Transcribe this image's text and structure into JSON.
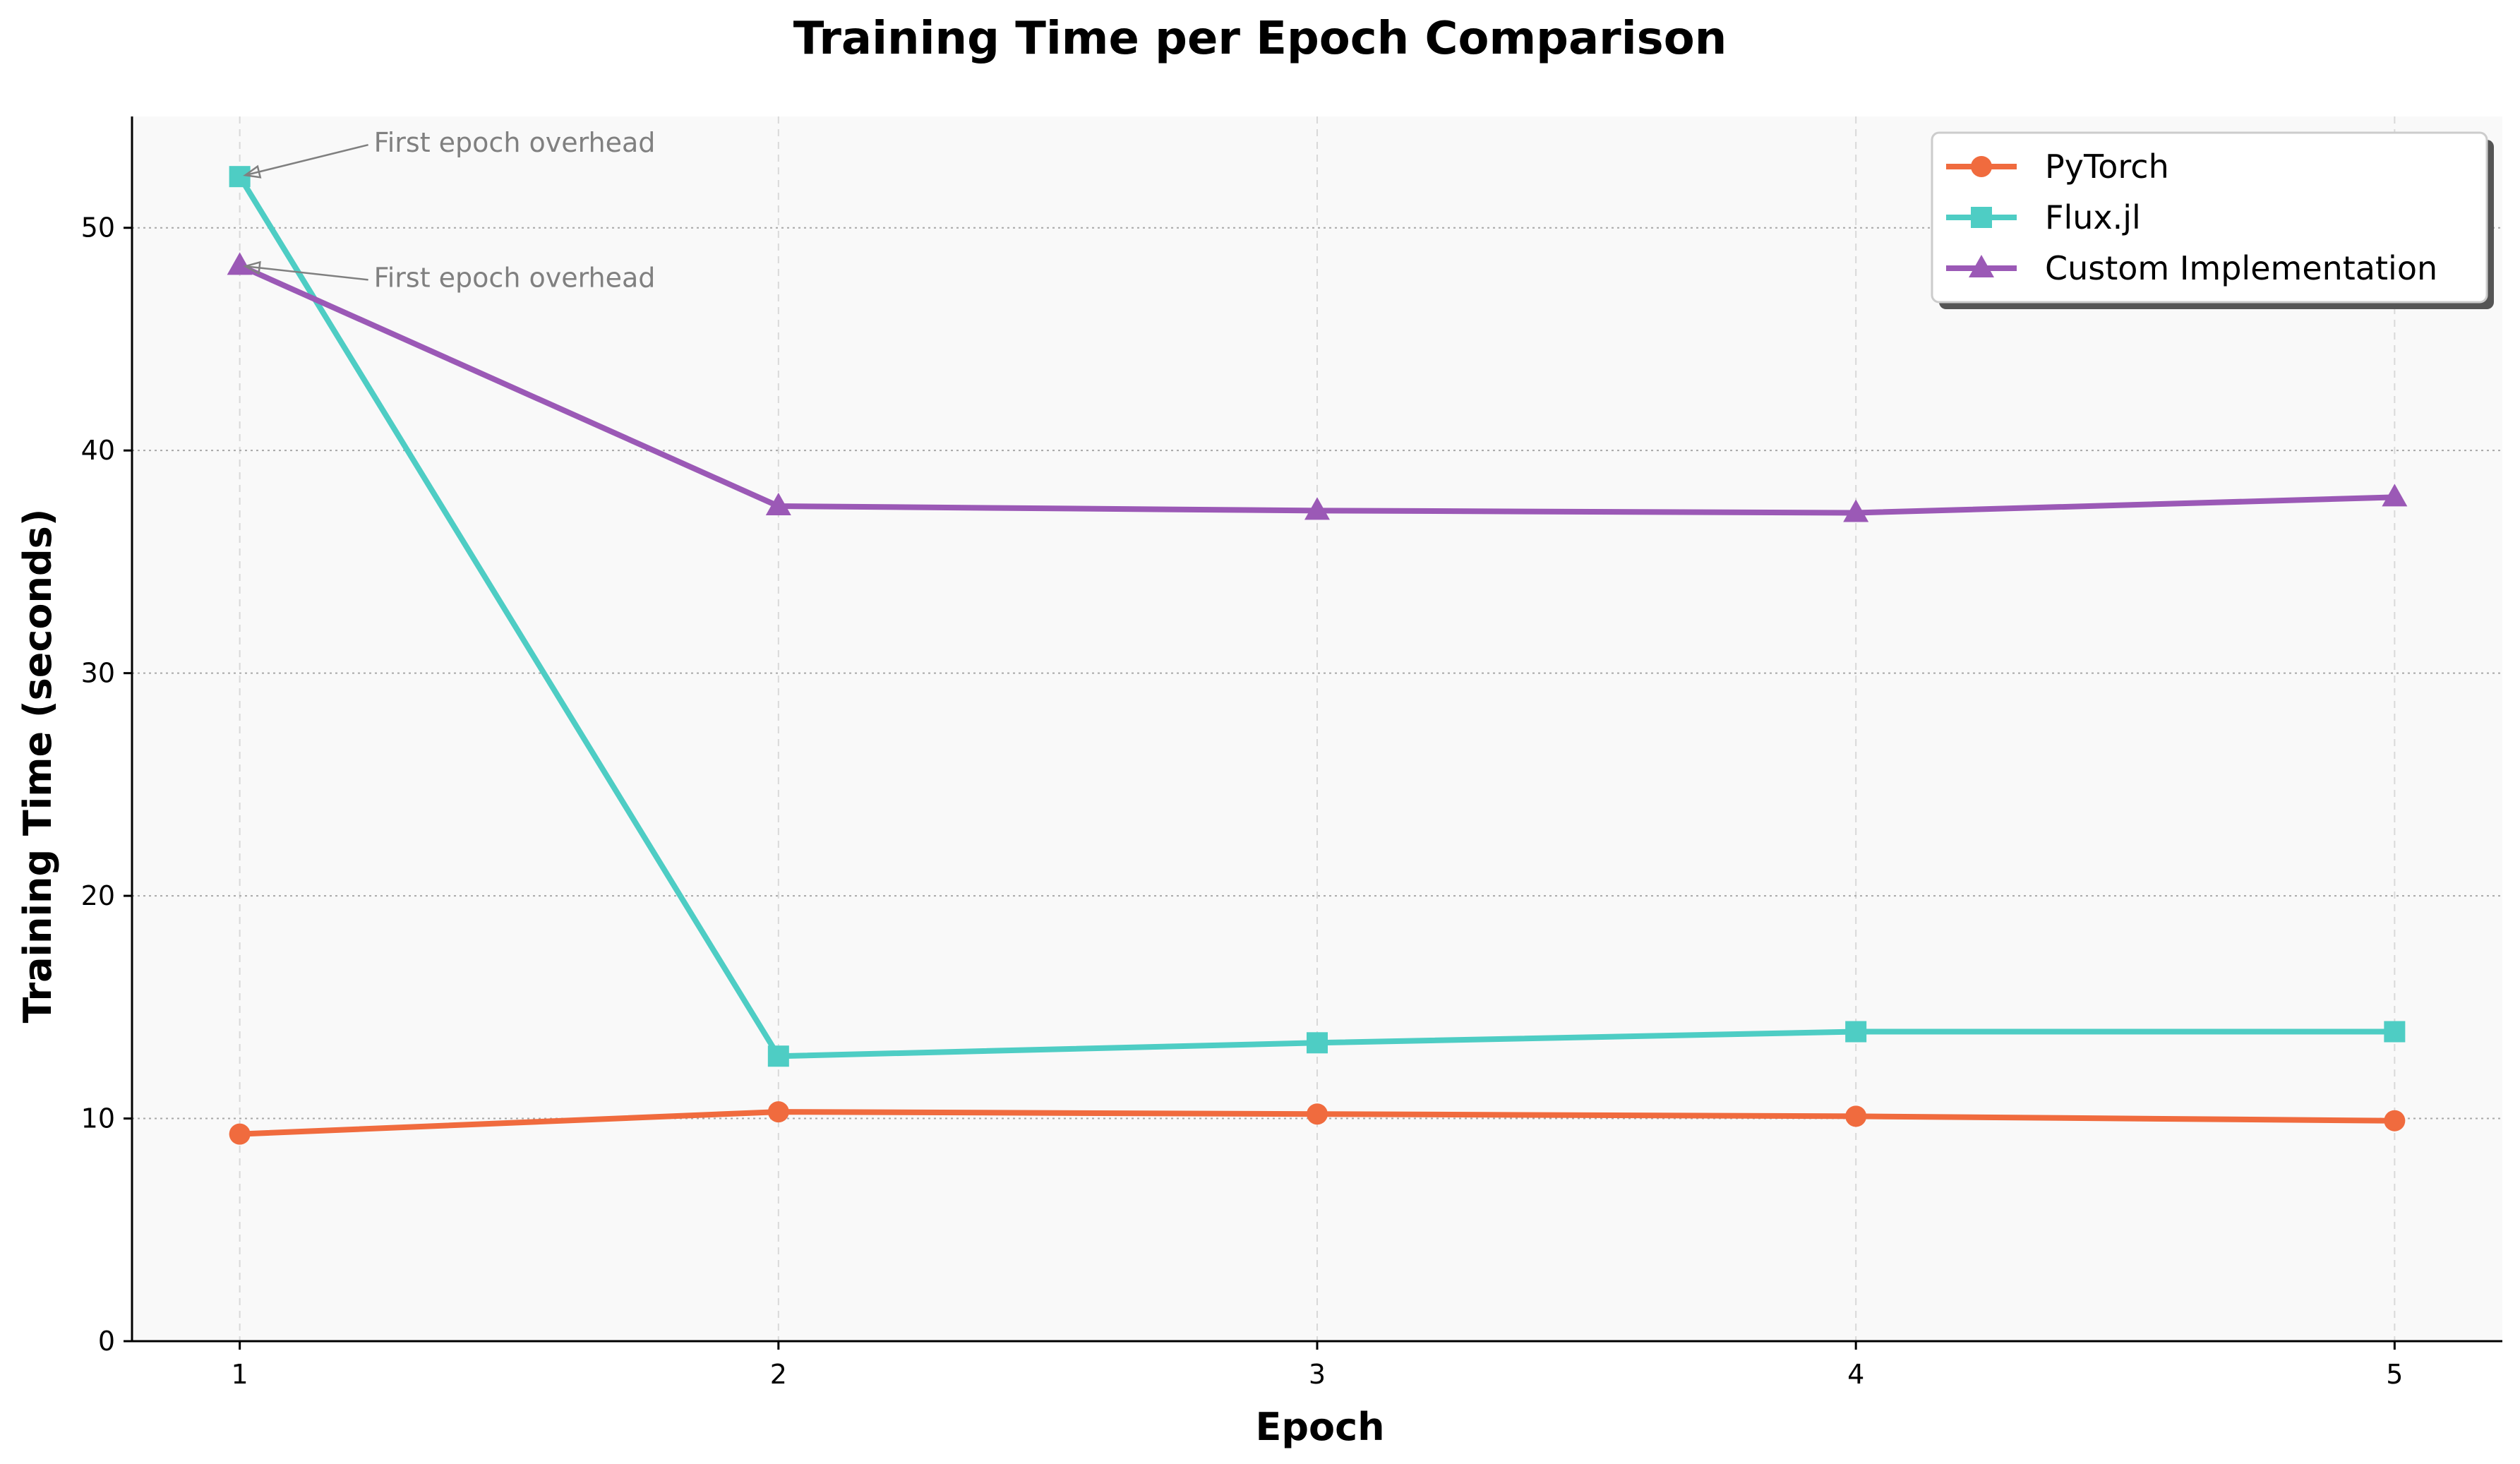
{
  "chart_data": {
    "type": "line",
    "title": "Training Time per Epoch Comparison",
    "xlabel": "Epoch",
    "ylabel": "Training Time (seconds)",
    "x": [
      1,
      2,
      3,
      4,
      5
    ],
    "xticks": [
      "1",
      "2",
      "3",
      "4",
      "5"
    ],
    "yticks": [
      "0",
      "10",
      "20",
      "30",
      "40",
      "50"
    ],
    "xlim": [
      0.8,
      5.2
    ],
    "ylim": [
      0,
      55
    ],
    "grid": true,
    "legend_position": "top-right",
    "series": [
      {
        "name": "PyTorch",
        "values": [
          9.3,
          10.3,
          10.2,
          10.1,
          9.9
        ],
        "color": "#f06b3e",
        "marker": "circle"
      },
      {
        "name": "Flux.jl",
        "values": [
          52.3,
          12.8,
          13.4,
          13.9,
          13.9
        ],
        "color": "#4ecdc4",
        "marker": "square"
      },
      {
        "name": "Custom Implementation",
        "values": [
          48.3,
          37.5,
          37.3,
          37.2,
          37.9
        ],
        "color": "#9b59b6",
        "marker": "triangle"
      }
    ],
    "annotations": [
      {
        "text": "First epoch overhead",
        "x": 1,
        "y": 52.3
      },
      {
        "text": "First epoch overhead",
        "x": 1,
        "y": 48.3
      }
    ]
  }
}
